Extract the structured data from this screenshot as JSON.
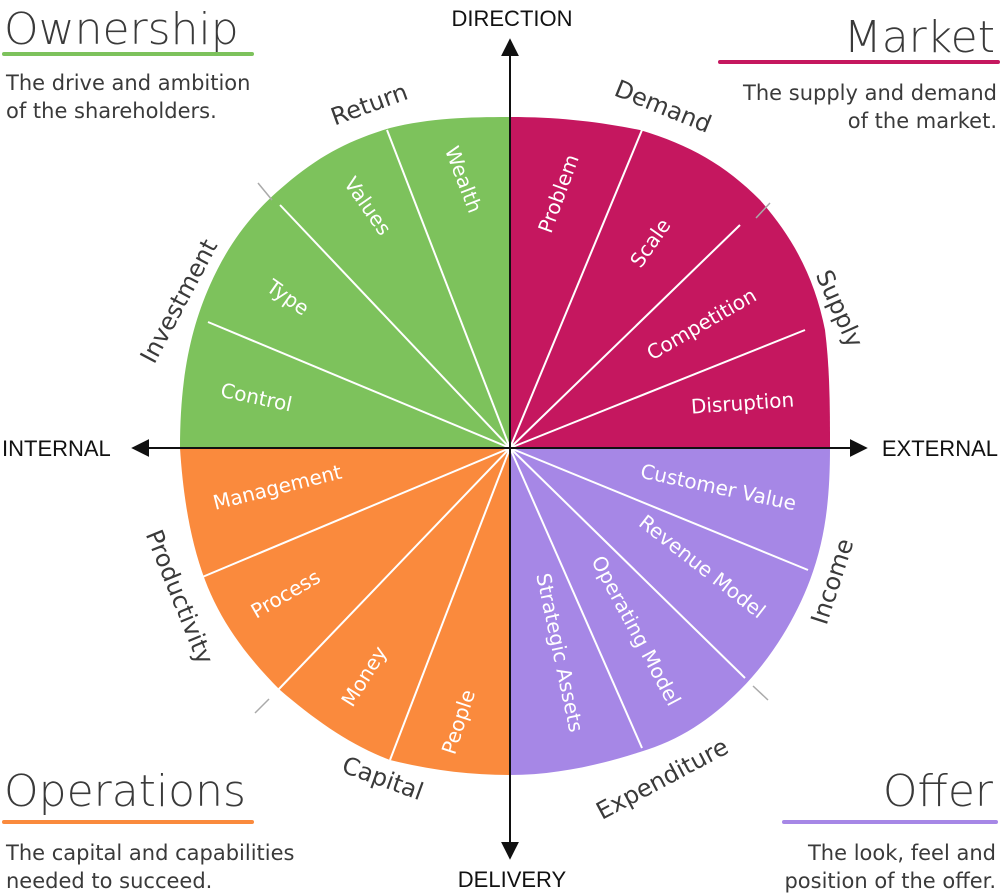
{
  "axes": {
    "top": "DIRECTION",
    "bottom": "DELIVERY",
    "left": "INTERNAL",
    "right": "EXTERNAL"
  },
  "quadrants": [
    {
      "key": "ownership",
      "title": "Ownership",
      "description_lines": [
        "The drive and ambition",
        "of the shareholders."
      ],
      "color": "#7dc25c",
      "underline_color": "#7dc25c",
      "groups": [
        {
          "name": "Return",
          "segments": [
            "Wealth",
            "Values"
          ]
        },
        {
          "name": "Investment",
          "segments": [
            "Type",
            "Control"
          ]
        }
      ]
    },
    {
      "key": "market",
      "title": "Market",
      "description_lines": [
        "The supply and demand",
        "of the market."
      ],
      "color": "#c5175f",
      "underline_color": "#c5175f",
      "groups": [
        {
          "name": "Demand",
          "segments": [
            "Problem",
            "Scale"
          ]
        },
        {
          "name": "Supply",
          "segments": [
            "Competition",
            "Disruption"
          ]
        }
      ]
    },
    {
      "key": "offer",
      "title": "Offer",
      "description_lines": [
        "The look, feel and",
        "position of the offer."
      ],
      "color": "#a687e6",
      "underline_color": "#a687e6",
      "groups": [
        {
          "name": "Income",
          "segments": [
            "Customer Value",
            "Revenue Model"
          ]
        },
        {
          "name": "Expenditure",
          "segments": [
            "Operating Model",
            "Strategic Assets"
          ]
        }
      ]
    },
    {
      "key": "operations",
      "title": "Operations",
      "description_lines": [
        "The capital and capabilities",
        "needed to succeed."
      ],
      "color": "#fa8a3d",
      "underline_color": "#fa8a3d",
      "groups": [
        {
          "name": "Capital",
          "segments": [
            "People",
            "Money"
          ]
        },
        {
          "name": "Productivity",
          "segments": [
            "Process",
            "Management"
          ]
        }
      ]
    }
  ]
}
